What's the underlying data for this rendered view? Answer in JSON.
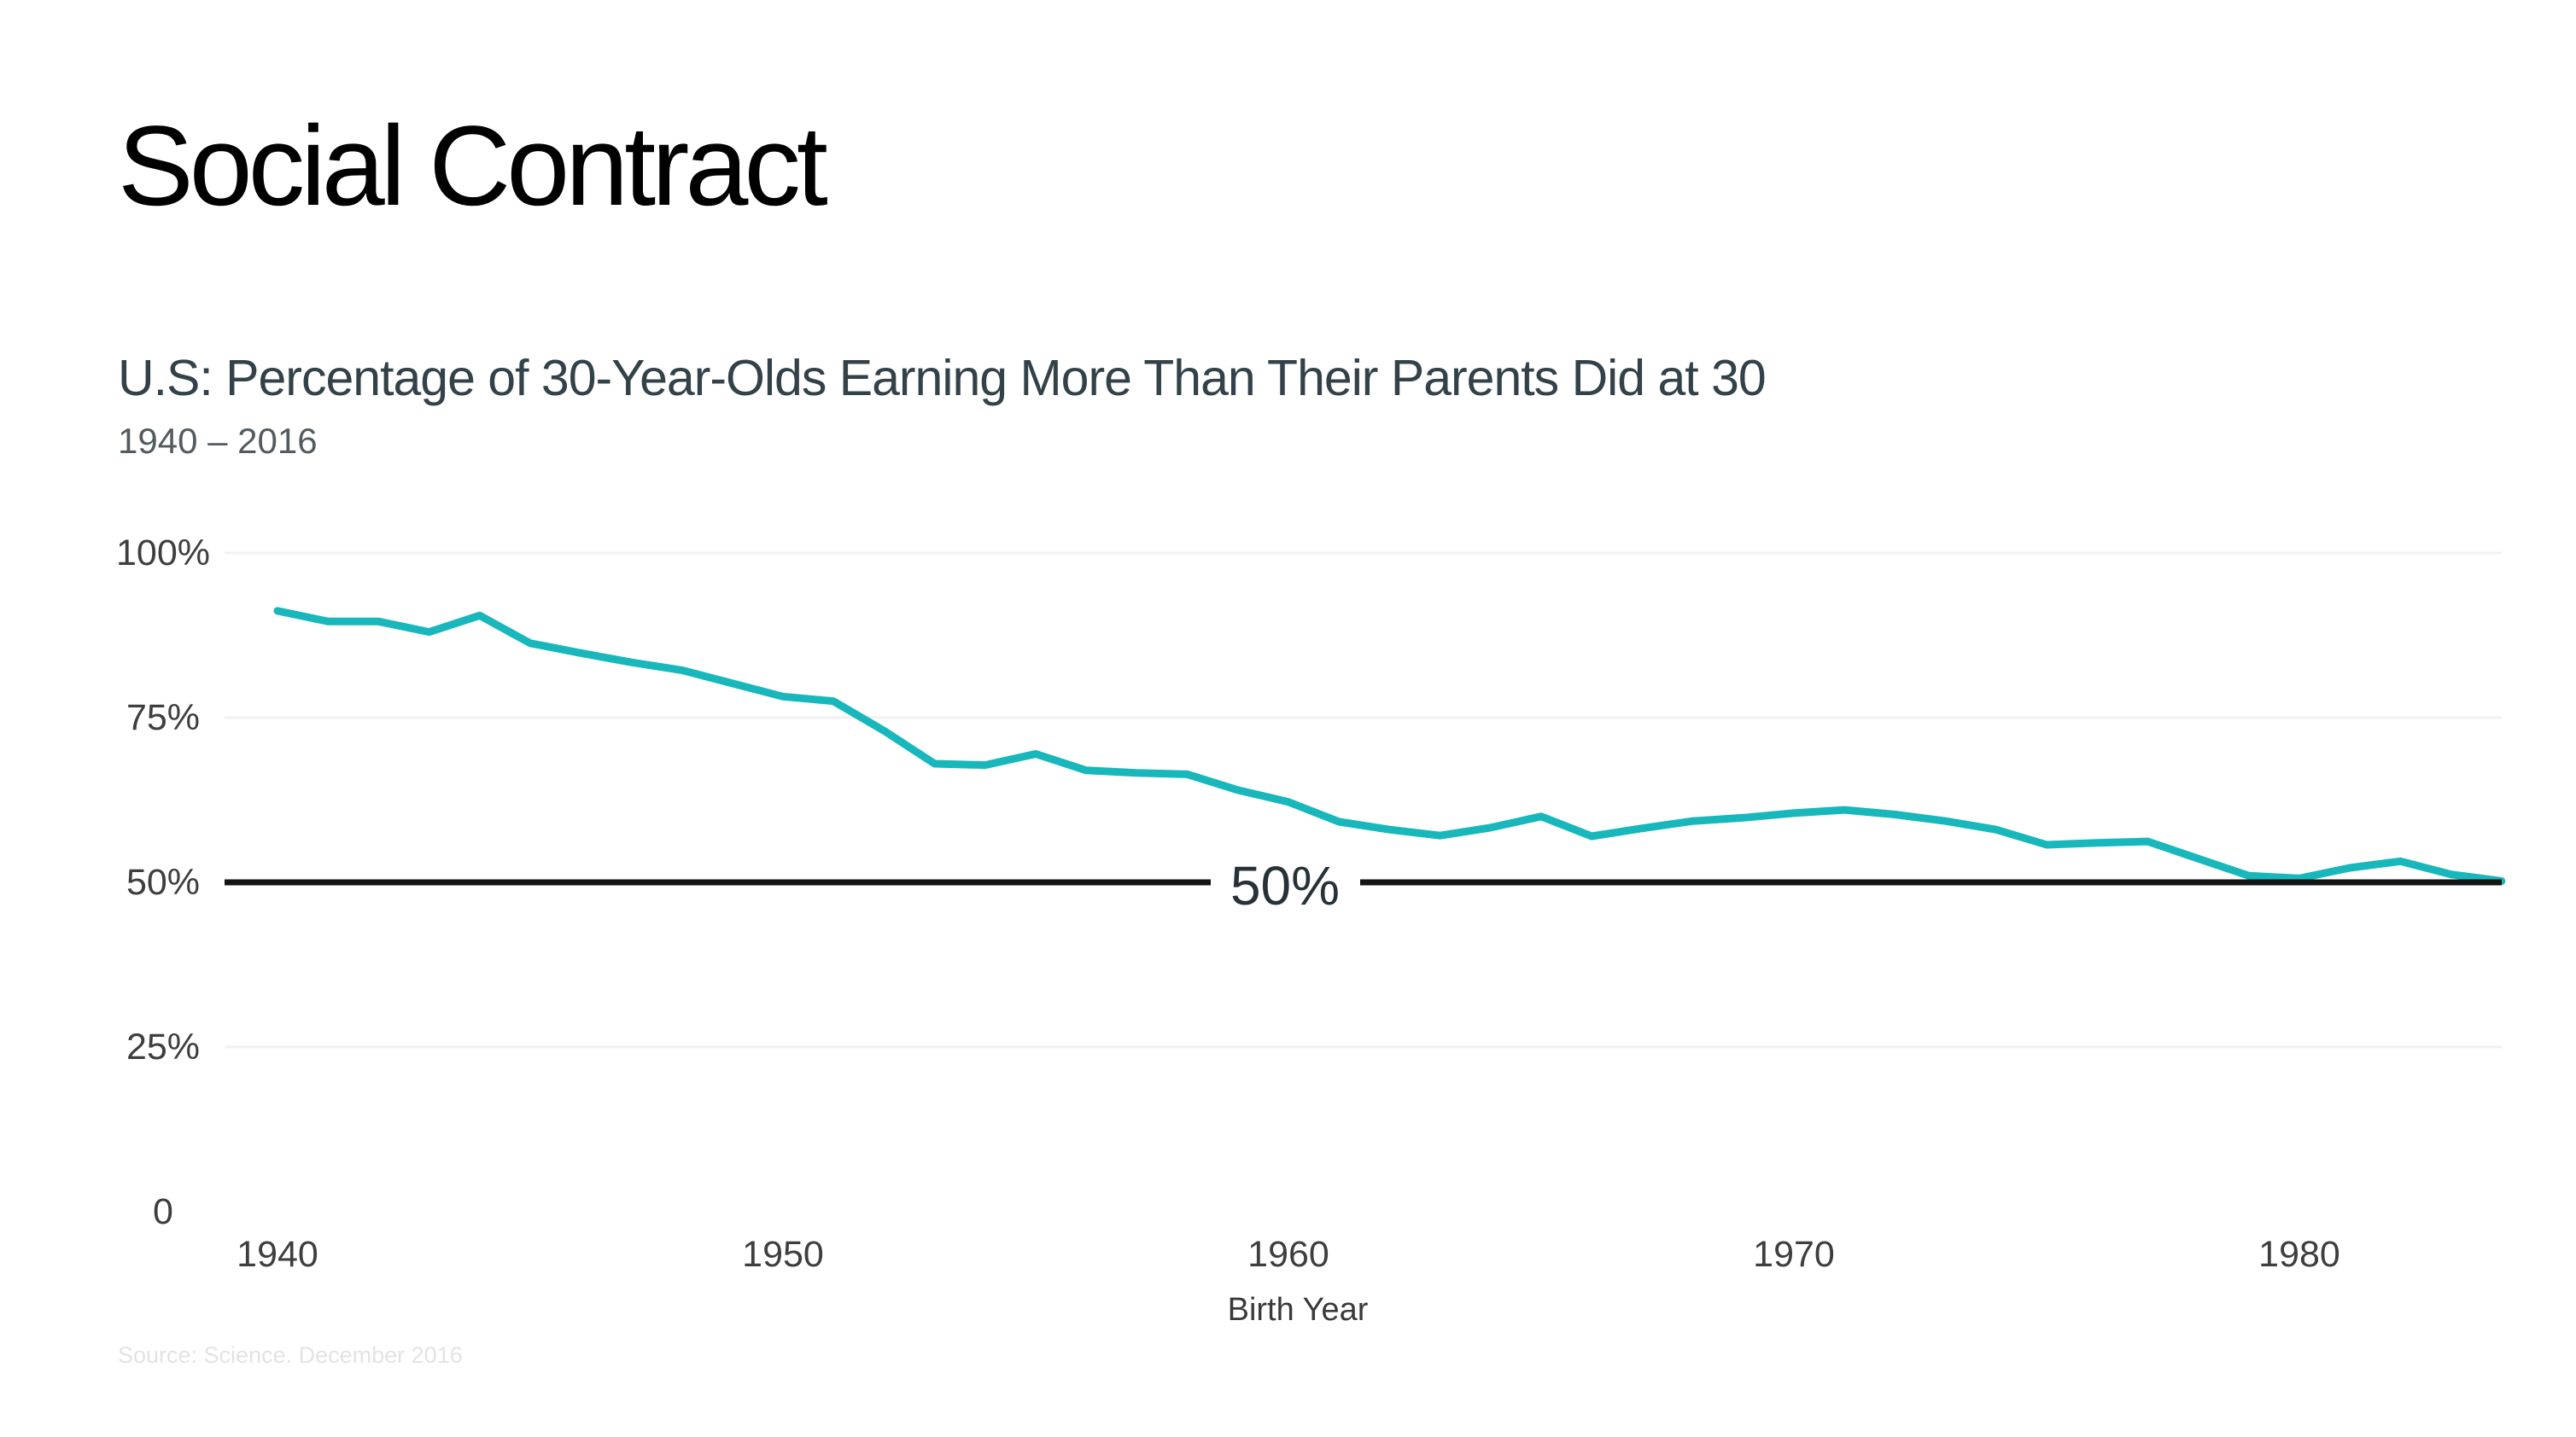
{
  "slide": {
    "title": "Social Contract",
    "source_note": "Source: Science. December 2016"
  },
  "chart": {
    "heading": "U.S: Percentage of 30-Year-Olds Earning More Than Their Parents Did at 30",
    "date_range": "1940 – 2016",
    "x_axis_title": "Birth Year",
    "reference_label": "50%"
  },
  "colors": {
    "background": "#ffffff",
    "title": "#000000",
    "heading": "#334249",
    "subheading": "#545b5e",
    "axis_labels": "#3e3e3e",
    "line": "#18b7bc",
    "reference": "#141414",
    "reference_label": "#263238",
    "grid": "#f1f1f1",
    "source": "#e3e3e3"
  },
  "chart_data": {
    "type": "line",
    "title": "U.S: Percentage of 30-Year-Olds Earning More Than Their Parents Did at 30",
    "subtitle": "1940 – 2016",
    "xlabel": "Birth Year",
    "ylabel": "",
    "x": [
      1940,
      1941,
      1942,
      1943,
      1944,
      1945,
      1946,
      1947,
      1948,
      1949,
      1950,
      1951,
      1952,
      1953,
      1954,
      1955,
      1956,
      1957,
      1958,
      1959,
      1960,
      1961,
      1962,
      1963,
      1964,
      1965,
      1966,
      1967,
      1968,
      1969,
      1970,
      1971,
      1972,
      1973,
      1974,
      1975,
      1976,
      1977,
      1978,
      1979,
      1980,
      1981,
      1982,
      1983,
      1984
    ],
    "series": [
      {
        "name": "percent_of_30_year_olds_earning_more_than_parents",
        "values": [
          91.2,
          89.6,
          89.6,
          88.0,
          90.5,
          86.3,
          84.8,
          83.4,
          82.2,
          80.2,
          78.2,
          77.5,
          73.0,
          68.0,
          67.8,
          69.5,
          67.0,
          66.6,
          66.4,
          64.0,
          62.2,
          59.2,
          58.0,
          57.1,
          58.3,
          60.0,
          57.0,
          58.2,
          59.3,
          59.8,
          60.5,
          61.0,
          60.3,
          59.3,
          58.0,
          55.7,
          56.0,
          56.2,
          53.6,
          51.0,
          50.6,
          52.2,
          53.2,
          51.2,
          50.2
        ]
      }
    ],
    "ylim": [
      0,
      100
    ],
    "xlim": [
      1940,
      1984
    ],
    "yticks": [
      {
        "value": 100,
        "label": "100%"
      },
      {
        "value": 75,
        "label": "75%"
      },
      {
        "value": 50,
        "label": "50%"
      },
      {
        "value": 25,
        "label": "25%"
      },
      {
        "value": 0,
        "label": "0"
      }
    ],
    "xticks": [
      {
        "value": 1940,
        "label": "1940"
      },
      {
        "value": 1950,
        "label": "1950"
      },
      {
        "value": 1960,
        "label": "1960"
      },
      {
        "value": 1970,
        "label": "1970"
      },
      {
        "value": 1980,
        "label": "1980"
      }
    ],
    "gridlines_y": [
      100,
      75,
      25
    ],
    "grid": "horizontal-faint",
    "legend": "none",
    "reference_line": {
      "y": 50,
      "label": "50%"
    }
  }
}
